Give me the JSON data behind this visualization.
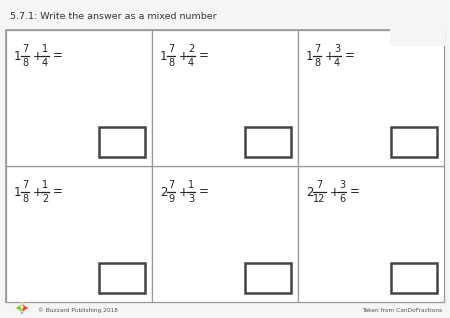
{
  "title": "5.7.1: Write the answer as a mixed number",
  "background_color": "#f5f5f5",
  "cell_bg": "#ffffff",
  "grid_color": "#cccccc",
  "border_color": "#999999",
  "answer_box_color": "#444444",
  "text_color": "#222222",
  "problems": [
    {
      "whole1": "1",
      "num1": "7",
      "den1": "8",
      "num2": "1",
      "den2": "4"
    },
    {
      "whole1": "1",
      "num1": "7",
      "den1": "8",
      "num2": "2",
      "den2": "4"
    },
    {
      "whole1": "1",
      "num1": "7",
      "den1": "8",
      "num2": "3",
      "den2": "4"
    },
    {
      "whole1": "1",
      "num1": "7",
      "den1": "8",
      "num2": "1",
      "den2": "2"
    },
    {
      "whole1": "2",
      "num1": "7",
      "den1": "9",
      "num2": "1",
      "den2": "3"
    },
    {
      "whole1": "2",
      "num1": "7",
      "den1": "12",
      "num2": "3",
      "den2": "6"
    }
  ],
  "footer_left": "© Buzzard Publishing 2018",
  "footer_right": "Taken from CanDoFractions",
  "logo_colors": [
    "#f5a623",
    "#7ed321",
    "#4a90e2",
    "#e74c3c"
  ]
}
